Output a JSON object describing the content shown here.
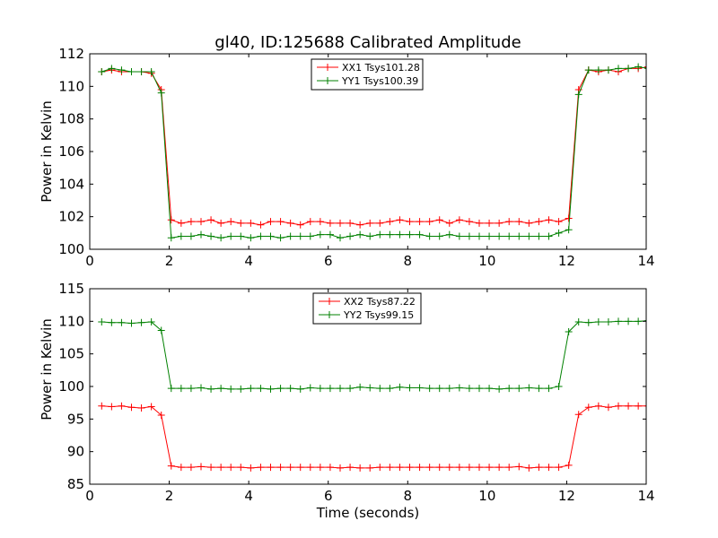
{
  "chart_data": [
    {
      "type": "line",
      "title": "gl40, ID:125688 Calibrated Amplitude",
      "xlabel": "",
      "ylabel": "Power in Kelvin",
      "xlim": [
        0,
        14
      ],
      "ylim": [
        100,
        112
      ],
      "xticks": [
        0,
        2,
        4,
        6,
        8,
        10,
        12,
        14
      ],
      "yticks": [
        100,
        102,
        104,
        106,
        108,
        110,
        112
      ],
      "grid": false,
      "legend_position": "top-center",
      "x": [
        0.3,
        0.55,
        0.8,
        1.05,
        1.3,
        1.55,
        1.8,
        2.05,
        2.3,
        2.55,
        2.8,
        3.05,
        3.3,
        3.55,
        3.8,
        4.05,
        4.3,
        4.55,
        4.8,
        5.05,
        5.3,
        5.55,
        5.8,
        6.05,
        6.3,
        6.55,
        6.8,
        7.05,
        7.3,
        7.55,
        7.8,
        8.05,
        8.3,
        8.55,
        8.8,
        9.05,
        9.3,
        9.55,
        9.8,
        10.05,
        10.3,
        10.55,
        10.8,
        11.05,
        11.3,
        11.55,
        11.8,
        12.05,
        12.3,
        12.55,
        12.8,
        13.05,
        13.3,
        13.55,
        13.8,
        14.05
      ],
      "series": [
        {
          "name": "XX1 Tsys101.28",
          "color": "#ff0000",
          "values": [
            110.9,
            111.0,
            110.9,
            110.9,
            110.9,
            110.8,
            109.8,
            101.8,
            101.6,
            101.7,
            101.7,
            101.8,
            101.6,
            101.7,
            101.6,
            101.6,
            101.5,
            101.7,
            101.7,
            101.6,
            101.5,
            101.7,
            101.7,
            101.6,
            101.6,
            101.6,
            101.5,
            101.6,
            101.6,
            101.7,
            101.8,
            101.7,
            101.7,
            101.7,
            101.8,
            101.6,
            101.8,
            101.7,
            101.6,
            101.6,
            101.6,
            101.7,
            101.7,
            101.6,
            101.7,
            101.8,
            101.7,
            101.9,
            109.8,
            111.0,
            110.9,
            111.0,
            110.9,
            111.1,
            111.1,
            111.2
          ]
        },
        {
          "name": "YY1 Tsys100.39",
          "color": "#008000",
          "values": [
            110.9,
            111.1,
            111.0,
            110.9,
            110.9,
            110.9,
            109.6,
            100.7,
            100.8,
            100.8,
            100.9,
            100.8,
            100.7,
            100.8,
            100.8,
            100.7,
            100.8,
            100.8,
            100.7,
            100.8,
            100.8,
            100.8,
            100.9,
            100.9,
            100.7,
            100.8,
            100.9,
            100.8,
            100.9,
            100.9,
            100.9,
            100.9,
            100.9,
            100.8,
            100.8,
            100.9,
            100.8,
            100.8,
            100.8,
            100.8,
            100.8,
            100.8,
            100.8,
            100.8,
            100.8,
            100.8,
            101.0,
            101.2,
            109.5,
            111.0,
            111.0,
            111.0,
            111.1,
            111.1,
            111.2,
            111.1
          ]
        }
      ]
    },
    {
      "type": "line",
      "title": "",
      "xlabel": "Time (seconds)",
      "ylabel": "Power in Kelvin",
      "xlim": [
        0,
        14
      ],
      "ylim": [
        85,
        115
      ],
      "xticks": [
        0,
        2,
        4,
        6,
        8,
        10,
        12,
        14
      ],
      "yticks": [
        85,
        90,
        95,
        100,
        105,
        110,
        115
      ],
      "grid": false,
      "legend_position": "top-center",
      "x": [
        0.3,
        0.55,
        0.8,
        1.05,
        1.3,
        1.55,
        1.8,
        2.05,
        2.3,
        2.55,
        2.8,
        3.05,
        3.3,
        3.55,
        3.8,
        4.05,
        4.3,
        4.55,
        4.8,
        5.05,
        5.3,
        5.55,
        5.8,
        6.05,
        6.3,
        6.55,
        6.8,
        7.05,
        7.3,
        7.55,
        7.8,
        8.05,
        8.3,
        8.55,
        8.8,
        9.05,
        9.3,
        9.55,
        9.8,
        10.05,
        10.3,
        10.55,
        10.8,
        11.05,
        11.3,
        11.55,
        11.8,
        12.05,
        12.3,
        12.55,
        12.8,
        13.05,
        13.3,
        13.55,
        13.8,
        14.05
      ],
      "series": [
        {
          "name": "XX2 Tsys87.22",
          "color": "#ff0000",
          "values": [
            97.0,
            96.9,
            97.0,
            96.8,
            96.7,
            96.9,
            95.6,
            87.8,
            87.6,
            87.6,
            87.7,
            87.6,
            87.6,
            87.6,
            87.6,
            87.5,
            87.6,
            87.6,
            87.6,
            87.6,
            87.6,
            87.6,
            87.6,
            87.6,
            87.5,
            87.6,
            87.5,
            87.5,
            87.6,
            87.6,
            87.6,
            87.6,
            87.6,
            87.6,
            87.6,
            87.6,
            87.6,
            87.6,
            87.6,
            87.6,
            87.6,
            87.6,
            87.7,
            87.5,
            87.6,
            87.6,
            87.6,
            87.9,
            95.7,
            96.8,
            97.0,
            96.8,
            97.0,
            97.0,
            97.0,
            97.0
          ]
        },
        {
          "name": "YY2 Tsys99.15",
          "color": "#008000",
          "values": [
            109.9,
            109.8,
            109.8,
            109.7,
            109.8,
            109.9,
            108.6,
            99.7,
            99.7,
            99.7,
            99.8,
            99.6,
            99.7,
            99.6,
            99.6,
            99.7,
            99.7,
            99.6,
            99.7,
            99.7,
            99.6,
            99.8,
            99.7,
            99.7,
            99.7,
            99.7,
            99.9,
            99.8,
            99.7,
            99.7,
            99.9,
            99.8,
            99.8,
            99.7,
            99.7,
            99.7,
            99.8,
            99.7,
            99.7,
            99.7,
            99.6,
            99.7,
            99.7,
            99.8,
            99.7,
            99.7,
            100.0,
            108.4,
            109.9,
            109.8,
            109.9,
            109.9,
            110.0,
            110.0,
            110.0,
            110.1
          ]
        }
      ]
    }
  ]
}
